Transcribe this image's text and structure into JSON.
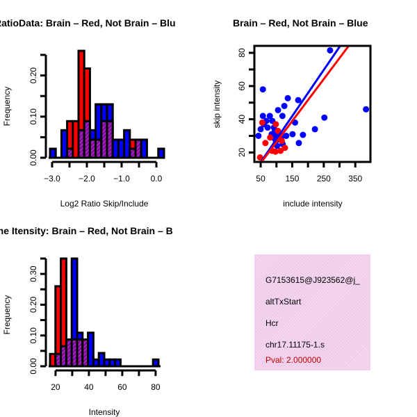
{
  "chart_data": [
    {
      "type": "bar",
      "title": "RatioData: Brain – Red, Not Brain – Blu",
      "xlabel": "Log2 Ratio Skip/Include",
      "ylabel": "Frequency",
      "xlim": [
        -3.06,
        0.06
      ],
      "ylim": [
        0,
        0.25
      ],
      "bin_start": -3.06,
      "bin_width": 0.164,
      "x_ticks": [
        -3.0,
        -2.5,
        -2.0,
        -1.5,
        -1.0,
        -0.5,
        0.0
      ],
      "x_tick_labels": [
        "-3.0",
        "-2.0",
        "-1.0",
        "0.0"
      ],
      "x_tick_label_values": [
        -3.0,
        -2.0,
        -1.0,
        0.0
      ],
      "y_ticks": [
        0,
        0.05,
        0.1,
        0.15,
        0.2,
        0.25
      ],
      "y_tick_labels": [
        "0.00",
        "0.10",
        "0.20"
      ],
      "y_tick_label_values": [
        0,
        0.1,
        0.2
      ],
      "series": [
        {
          "name": "Brain",
          "color": "#ff0000",
          "values": [
            0,
            0,
            0,
            0.089,
            0.089,
            0.26,
            0.217,
            0.044,
            0.044,
            0.089,
            0.089,
            0,
            0,
            0,
            0.044,
            0.044,
            0,
            0,
            0
          ]
        },
        {
          "name": "Not Brain",
          "color": "#0000ff",
          "values": [
            0.022,
            0,
            0.067,
            0.022,
            0,
            0.067,
            0.089,
            0.067,
            0.13,
            0.13,
            0.13,
            0.044,
            0.044,
            0.067,
            0.022,
            0.044,
            0.044,
            0,
            0,
            0.022
          ]
        }
      ],
      "overlap_color": "#9a10b0"
    },
    {
      "type": "scatter",
      "title": "Brain – Red, Not Brain – Blue",
      "xlabel": "include intensity",
      "ylabel": "skip intensity",
      "xlim": [
        30,
        398
      ],
      "ylim": [
        14.3,
        84.2
      ],
      "x_ticks": [
        50,
        100,
        150,
        200,
        250,
        300,
        350
      ],
      "x_tick_labels": [
        "50",
        "150",
        "250",
        "350"
      ],
      "x_tick_label_values": [
        50,
        150,
        250,
        350
      ],
      "y_ticks": [
        20,
        30,
        40,
        50,
        60,
        70,
        80
      ],
      "y_tick_labels": [
        "20",
        "40",
        "60",
        "80"
      ],
      "y_tick_label_values": [
        20,
        40,
        60,
        80
      ],
      "series": [
        {
          "name": "Not Brain",
          "color": "#0000ff",
          "points": [
            [
              270,
              81.5
            ],
            [
              384,
              46
            ],
            [
              57,
              58
            ],
            [
              136,
              52.7
            ],
            [
              169,
              51.5
            ],
            [
              105,
              45.5
            ],
            [
              125,
              48
            ],
            [
              119,
              42
            ],
            [
              252,
              41
            ],
            [
              159,
              38
            ],
            [
              222,
              34
            ],
            [
              184,
              30.6
            ],
            [
              171,
              25.7
            ],
            [
              151,
              31
            ],
            [
              57,
              42
            ],
            [
              79,
              42
            ],
            [
              87,
              39
            ],
            [
              68,
              39
            ],
            [
              50,
              34
            ],
            [
              72,
              35
            ],
            [
              43,
              30
            ],
            [
              131,
              30
            ],
            [
              120,
              25
            ],
            [
              95,
              33
            ],
            [
              100,
              30
            ],
            [
              105,
              28
            ],
            [
              90,
              29
            ],
            [
              110,
              31
            ],
            [
              98,
              27
            ],
            [
              85,
              31
            ],
            [
              92,
              35
            ],
            [
              102,
              24
            ],
            [
              115,
              29
            ],
            [
              60,
              37
            ]
          ],
          "fit": {
            "slope": 0.278,
            "intercept": 0.2
          }
        },
        {
          "name": "Brain",
          "color": "#ff0000",
          "points": [
            [
              48,
              17
            ],
            [
              55,
              38
            ],
            [
              65,
              25.7
            ],
            [
              98,
              37
            ],
            [
              127,
              22.8
            ],
            [
              113,
              21
            ],
            [
              97,
              20.5
            ],
            [
              86,
              21
            ],
            [
              117,
              27
            ],
            [
              105,
              33
            ],
            [
              80,
              29
            ]
          ],
          "fit": {
            "slope": 0.253,
            "intercept": 0.94
          }
        }
      ]
    },
    {
      "type": "bar",
      "title": "Gene Itensity: Brain – Red, Not Brain – B",
      "xlabel": "Intensity",
      "ylabel": "Frequency",
      "xlim": [
        16.7,
        81.7
      ],
      "ylim": [
        0,
        0.35
      ],
      "bin_start": 16.7,
      "bin_width": 3.25,
      "x_ticks": [
        20,
        30,
        40,
        50,
        60,
        70,
        80
      ],
      "x_tick_labels": [
        "20",
        "40",
        "60",
        "80"
      ],
      "x_tick_label_values": [
        20,
        40,
        60,
        80
      ],
      "y_ticks": [
        0,
        0.05,
        0.1,
        0.15,
        0.2,
        0.25,
        0.3,
        0.35
      ],
      "y_tick_labels": [
        "0.00",
        "0.10",
        "0.20",
        "0.30"
      ],
      "y_tick_label_values": [
        0,
        0.1,
        0.2,
        0.3
      ],
      "series": [
        {
          "name": "Brain",
          "color": "#ff0000",
          "values": [
            0.04,
            0.26,
            0.35,
            0.087,
            0.087,
            0.087,
            0.087,
            0,
            0,
            0,
            0,
            0,
            0,
            0,
            0,
            0,
            0,
            0,
            0,
            0
          ]
        },
        {
          "name": "Not Brain",
          "color": "#0000ff",
          "values": [
            0,
            0.04,
            0.065,
            0.087,
            0.35,
            0.109,
            0.087,
            0.109,
            0.022,
            0.043,
            0.022,
            0.022,
            0.022,
            0,
            0,
            0,
            0,
            0,
            0,
            0.022
          ]
        }
      ],
      "overlap_color": "#9a10b0"
    }
  ],
  "info": {
    "id": "G7153615@J923562@j_",
    "event_type": "altTxStart",
    "gene": "Hcr",
    "location": "chr17.11175-1.s",
    "pval": "Pval: 2.000000"
  }
}
